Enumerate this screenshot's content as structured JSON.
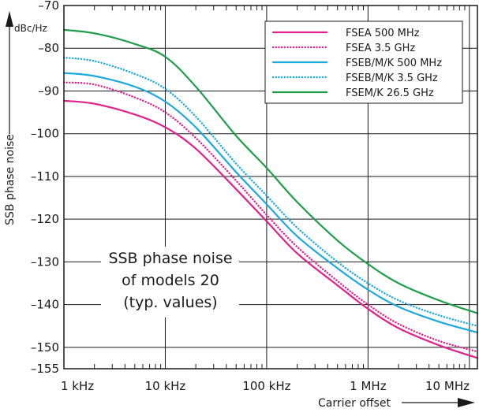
{
  "chart_data": {
    "type": "line",
    "title": "",
    "annotation": [
      "SSB phase noise",
      "of models 20",
      "(typ. values)"
    ],
    "xlabel": "Carrier offset",
    "ylabel": "SSB phase noise",
    "yunit": "dBc/Hz",
    "xscale": "log",
    "xlim": [
      1000,
      12000000
    ],
    "ylim": [
      -155,
      -70
    ],
    "xticks": [
      {
        "value": 1000,
        "label": "1 kHz"
      },
      {
        "value": 10000,
        "label": "10 kHz"
      },
      {
        "value": 100000,
        "label": "100 kHz"
      },
      {
        "value": 1000000,
        "label": "1 MHz"
      },
      {
        "value": 10000000,
        "label": "10 MHz"
      }
    ],
    "yticks": [
      {
        "value": -70,
        "label": "–70"
      },
      {
        "value": -80,
        "label": "–80"
      },
      {
        "value": -90,
        "label": "–90"
      },
      {
        "value": -100,
        "label": "–100"
      },
      {
        "value": -110,
        "label": "–110"
      },
      {
        "value": -120,
        "label": "–120"
      },
      {
        "value": -130,
        "label": "–130"
      },
      {
        "value": -140,
        "label": "–140"
      },
      {
        "value": -150,
        "label": "–150"
      },
      {
        "value": -155,
        "label": "–155"
      }
    ],
    "grid": true,
    "legend_position": "top-right",
    "series": [
      {
        "name": "FSEA 500 MHz",
        "color": "#e0218a",
        "dash": "solid",
        "x": [
          1000,
          2000,
          5000,
          10000,
          20000,
          50000,
          100000,
          200000,
          500000,
          1000000,
          2000000,
          5000000,
          12000000
        ],
        "y": [
          -92.3,
          -93,
          -95.5,
          -98.5,
          -103.5,
          -113,
          -120.5,
          -128,
          -135.5,
          -141,
          -145.5,
          -149.5,
          -152.5
        ]
      },
      {
        "name": "FSEA 3.5 GHz",
        "color": "#e0218a",
        "dash": "dotted",
        "x": [
          1000,
          2000,
          5000,
          10000,
          20000,
          50000,
          100000,
          200000,
          500000,
          1000000,
          2000000,
          5000000,
          12000000
        ],
        "y": [
          -88,
          -88.5,
          -91.5,
          -95,
          -101,
          -111,
          -119,
          -126.5,
          -134.5,
          -140,
          -144.5,
          -148.5,
          -151
        ]
      },
      {
        "name": "FSEB/M/K 500 MHz",
        "color": "#1ba8dc",
        "dash": "solid",
        "x": [
          1000,
          2000,
          5000,
          10000,
          20000,
          50000,
          100000,
          200000,
          500000,
          1000000,
          2000000,
          5000000,
          12000000
        ],
        "y": [
          -85.8,
          -86.5,
          -89,
          -92.5,
          -98.5,
          -109,
          -116.5,
          -124,
          -131.5,
          -136.5,
          -140.5,
          -144,
          -146.5
        ]
      },
      {
        "name": "FSEB/M/K 3.5 GHz",
        "color": "#1ba8dc",
        "dash": "dotted",
        "x": [
          1000,
          2000,
          5000,
          10000,
          20000,
          50000,
          100000,
          200000,
          500000,
          1000000,
          2000000,
          5000000,
          12000000
        ],
        "y": [
          -82.2,
          -83,
          -86,
          -89.5,
          -96,
          -107,
          -114.5,
          -122,
          -130,
          -135,
          -139,
          -142.5,
          -145
        ]
      },
      {
        "name": "FSEM/K 26.5 GHz",
        "color": "#1f9e4a",
        "dash": "solid",
        "x": [
          1000,
          2000,
          5000,
          10000,
          20000,
          50000,
          100000,
          200000,
          500000,
          1000000,
          2000000,
          5000000,
          12000000
        ],
        "y": [
          -75.7,
          -76.5,
          -79,
          -82,
          -89,
          -100.5,
          -108,
          -116,
          -125,
          -130.5,
          -135,
          -139,
          -142
        ]
      }
    ]
  }
}
